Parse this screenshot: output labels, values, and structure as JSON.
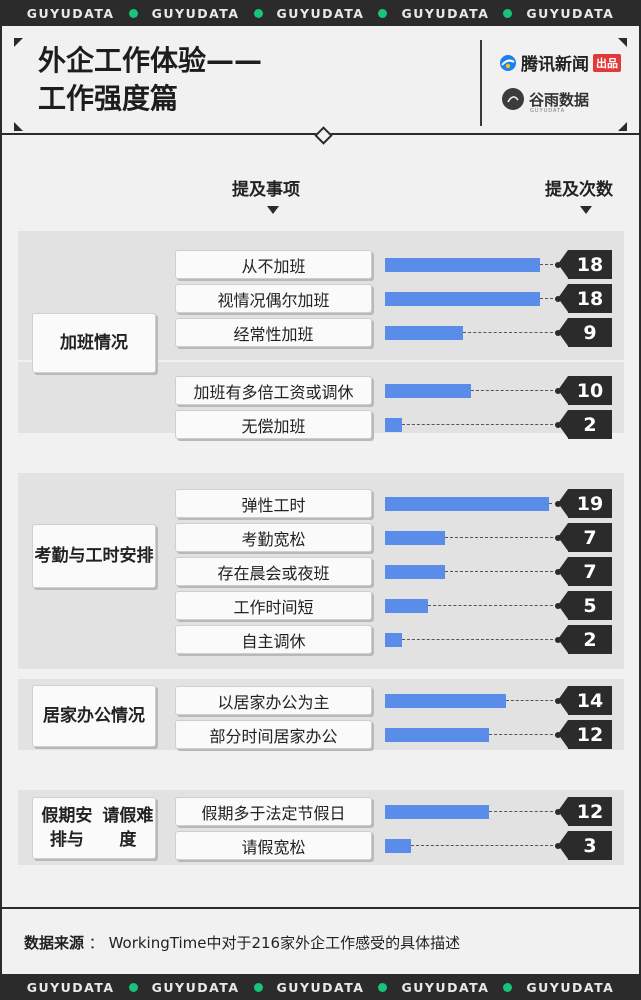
{
  "watermark": "GUYUDATA",
  "title_line1": "外企工作体验——",
  "title_line2": "工作强度篇",
  "logo_tencent": "腾讯新闻",
  "logo_tencent_badge": "出品",
  "logo_guyu": "谷雨数据",
  "logo_guyu_sub": "GUYUDATA",
  "accent_color": "#5a8dea",
  "chart_data": {
    "type": "bar",
    "orientation": "horizontal",
    "column_header_item": "提及事项",
    "column_header_count": "提及次数",
    "groups": [
      {
        "name": "加班情况",
        "items": [
          {
            "label": "从不加班",
            "value": 18
          },
          {
            "label": "视情况偶尔加班",
            "value": 18
          },
          {
            "label": "经常性加班",
            "value": 9
          },
          {
            "label": "加班有多倍工资或调休",
            "value": 10
          },
          {
            "label": "无偿加班",
            "value": 2
          }
        ]
      },
      {
        "name": "考勤与工时安排",
        "items": [
          {
            "label": "弹性工时",
            "value": 19
          },
          {
            "label": "考勤宽松",
            "value": 7
          },
          {
            "label": "存在晨会或夜班",
            "value": 7
          },
          {
            "label": "工作时间短",
            "value": 5
          },
          {
            "label": "自主调休",
            "value": 2
          }
        ]
      },
      {
        "name": "居家办公情况",
        "items": [
          {
            "label": "以居家办公为主",
            "value": 14
          },
          {
            "label": "部分时间居家办公",
            "value": 12
          }
        ]
      },
      {
        "name": "假期安排与请假难度",
        "items": [
          {
            "label": "假期多于法定节假日",
            "value": 12
          },
          {
            "label": "请假宽松",
            "value": 3
          }
        ]
      }
    ]
  },
  "source_label": "数据来源",
  "source_text": "WorkingTime中对于216家外企工作感受的具体描述"
}
